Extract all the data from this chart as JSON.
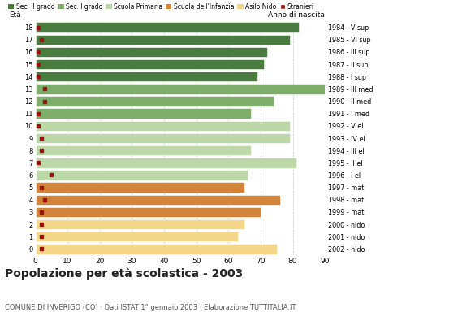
{
  "title": "Popolazione per età scolastica - 2003",
  "subtitle": "COMUNE DI INVERIGO (CO) · Dati ISTAT 1° gennaio 2003 · Elaborazione TUTTITALIA.IT",
  "ages": [
    18,
    17,
    16,
    15,
    14,
    13,
    12,
    11,
    10,
    9,
    8,
    7,
    6,
    5,
    4,
    3,
    2,
    1,
    0
  ],
  "anno_nascita": [
    "1984 - V sup",
    "1985 - VI sup",
    "1986 - III sup",
    "1987 - II sup",
    "1988 - I sup",
    "1989 - III med",
    "1990 - II med",
    "1991 - I med",
    "1992 - V el",
    "1993 - IV el",
    "1994 - III el",
    "1995 - II el",
    "1996 - I el",
    "1997 - mat",
    "1998 - mat",
    "1999 - mat",
    "2000 - nido",
    "2001 - nido",
    "2002 - nido"
  ],
  "bar_values": [
    82,
    79,
    72,
    71,
    69,
    90,
    74,
    67,
    79,
    79,
    67,
    81,
    66,
    65,
    76,
    70,
    65,
    63,
    75
  ],
  "stranieri_values": [
    1,
    2,
    1,
    1,
    1,
    3,
    3,
    1,
    1,
    2,
    2,
    1,
    5,
    2,
    3,
    2,
    2,
    2,
    2
  ],
  "colors": {
    "Sec. II grado": "#4a7c40",
    "Sec. I grado": "#7fad6a",
    "Scuola Primaria": "#bcd7a8",
    "Scuola dell'Infanzia": "#d4833a",
    "Asilo Nido": "#f5d78a",
    "Stranieri": "#a01010"
  },
  "bar_colors": [
    "#4a7c40",
    "#4a7c40",
    "#4a7c40",
    "#4a7c40",
    "#4a7c40",
    "#7fad6a",
    "#7fad6a",
    "#7fad6a",
    "#bcd7a8",
    "#bcd7a8",
    "#bcd7a8",
    "#bcd7a8",
    "#bcd7a8",
    "#d4833a",
    "#d4833a",
    "#d4833a",
    "#f5d78a",
    "#f5d78a",
    "#f5d78a"
  ],
  "xticks": [
    0,
    10,
    20,
    30,
    40,
    50,
    60,
    70,
    80,
    90
  ],
  "background_color": "#ffffff",
  "grid_color": "#c8c8c8"
}
